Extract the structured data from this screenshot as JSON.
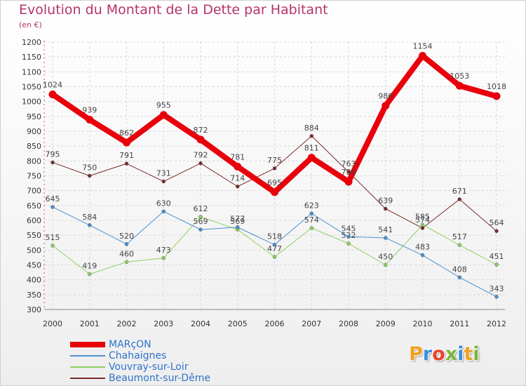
{
  "header": {
    "title": "Evolution du Montant de la Dette par Habitant",
    "subtitle": "(en €)"
  },
  "logo": {
    "text": "Proxiti",
    "letters": [
      {
        "ch": "P",
        "color": "#f0a020"
      },
      {
        "ch": "r",
        "color": "#3a8fd8"
      },
      {
        "ch": "o",
        "color": "#e8412c"
      },
      {
        "ch": "x",
        "color": "#78b83a"
      },
      {
        "ch": "i",
        "color": "#3a8fd8"
      },
      {
        "ch": "t",
        "color": "#f0a020"
      },
      {
        "ch": "i",
        "color": "#78b83a"
      }
    ]
  },
  "chart_data": {
    "type": "line",
    "title": "Evolution du Montant de la Dette par Habitant",
    "subtitle": "(en €)",
    "x": [
      "2000",
      "2001",
      "2002",
      "2003",
      "2004",
      "2005",
      "2006",
      "2007",
      "2008",
      "2009",
      "2010",
      "2011",
      "2012"
    ],
    "ylim": [
      300,
      1200
    ],
    "yticks": [
      300,
      350,
      400,
      450,
      500,
      550,
      600,
      650,
      700,
      750,
      800,
      850,
      900,
      950,
      1000,
      1050,
      1100,
      1150,
      1200
    ],
    "grid": true,
    "legend_position": "bottom-left",
    "series": [
      {
        "name": "Beaumont-sur-Dême",
        "color": "#7a2b2b",
        "values": [
          795,
          750,
          791,
          731,
          792,
          714,
          775,
          884,
          763,
          639,
          574,
          671,
          564
        ],
        "labels": [
          "795",
          "750",
          "791",
          "731",
          "792",
          "714",
          "775",
          "884",
          "763",
          "639",
          "574",
          "671",
          "564"
        ],
        "width": 1,
        "marker": 5
      },
      {
        "name": "Vouvray-sur-Loir",
        "color": "#8fd160",
        "values": [
          515,
          419,
          460,
          473,
          612,
          569,
          477,
          574,
          522,
          450,
          585,
          517,
          451
        ],
        "labels": [
          "515",
          "419",
          "460",
          "473",
          "612",
          "569",
          "477",
          "574",
          "522",
          "450",
          "585",
          "517",
          "451"
        ],
        "width": 1,
        "marker": 5
      },
      {
        "name": "Chahaignes",
        "color": "#4a8fcf",
        "values": [
          645,
          584,
          520,
          630,
          569,
          577,
          518,
          623,
          545,
          541,
          483,
          408,
          343
        ],
        "labels": [
          "645",
          "584",
          "520",
          "630",
          "569",
          "577",
          "518",
          "623",
          "545",
          "541",
          "483",
          "408",
          "343"
        ],
        "width": 1,
        "marker": 5
      },
      {
        "name": "MARçON",
        "color": "#e8000b",
        "values": [
          1024,
          939,
          862,
          955,
          872,
          781,
          695,
          811,
          730,
          986,
          1154,
          1053,
          1018
        ],
        "labels": [
          "1024",
          "939",
          "862",
          "955",
          "872",
          "781",
          "695",
          "811",
          "730",
          "986",
          "1154",
          "1053",
          "1018"
        ],
        "width": 8,
        "marker": 11
      }
    ]
  },
  "legend": [
    {
      "name": "MARçON",
      "color": "#e8000b",
      "thickness": 8
    },
    {
      "name": "Chahaignes",
      "color": "#4a8fcf",
      "thickness": 2
    },
    {
      "name": "Vouvray-sur-Loir",
      "color": "#8fd160",
      "thickness": 2
    },
    {
      "name": "Beaumont-sur-Dême",
      "color": "#7a2b2b",
      "thickness": 2
    }
  ]
}
